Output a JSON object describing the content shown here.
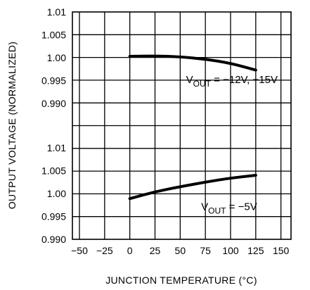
{
  "chart_data": {
    "type": "line",
    "xlabel": "JUNCTION TEMPERATURE (°C)",
    "ylabel": "OUTPUT VOLTAGE (NORMALIZED)",
    "xlim": [
      -50,
      150
    ],
    "x_ticks": [
      -50,
      -25,
      0,
      25,
      50,
      75,
      100,
      125,
      150
    ],
    "x_tick_labels": [
      "-50",
      "-25",
      "0",
      "25",
      "50",
      "75",
      "100",
      "125",
      "150"
    ],
    "grid": true,
    "panels": [
      {
        "ylim": [
          0.99,
          1.01
        ],
        "y_ticks": [
          1.01,
          1.005,
          1.0,
          0.995,
          0.99
        ],
        "y_tick_labels": [
          "1.01",
          "1.005",
          "1.00",
          "0.995",
          "0.990"
        ],
        "series": [
          {
            "x": [
              0,
              25,
              50,
              75,
              100,
              125
            ],
            "y": [
              1.0003,
              1.0004,
              1.0002,
              0.9997,
              0.9988,
              0.9973
            ]
          }
        ],
        "annotation": {
          "main": "V",
          "sub": "OUT",
          "rest": " = −12V, −15V",
          "x": 60,
          "y": 0.9945
        }
      },
      {
        "ylim": [
          0.99,
          1.01
        ],
        "y_ticks": [
          1.01,
          1.005,
          1.0,
          0.995,
          0.99
        ],
        "y_tick_labels": [
          "1.01",
          "1.005",
          "1.00",
          "0.995",
          "0.990"
        ],
        "series": [
          {
            "x": [
              0,
              25,
              50,
              75,
              100,
              125
            ],
            "y": [
              0.9989,
              1.0004,
              1.0015,
              1.0025,
              1.0034,
              1.004
            ]
          }
        ],
        "annotation": {
          "main": "V",
          "sub": "OUT",
          "rest": " = −5V",
          "x": 75,
          "y": 0.9964
        }
      }
    ]
  }
}
